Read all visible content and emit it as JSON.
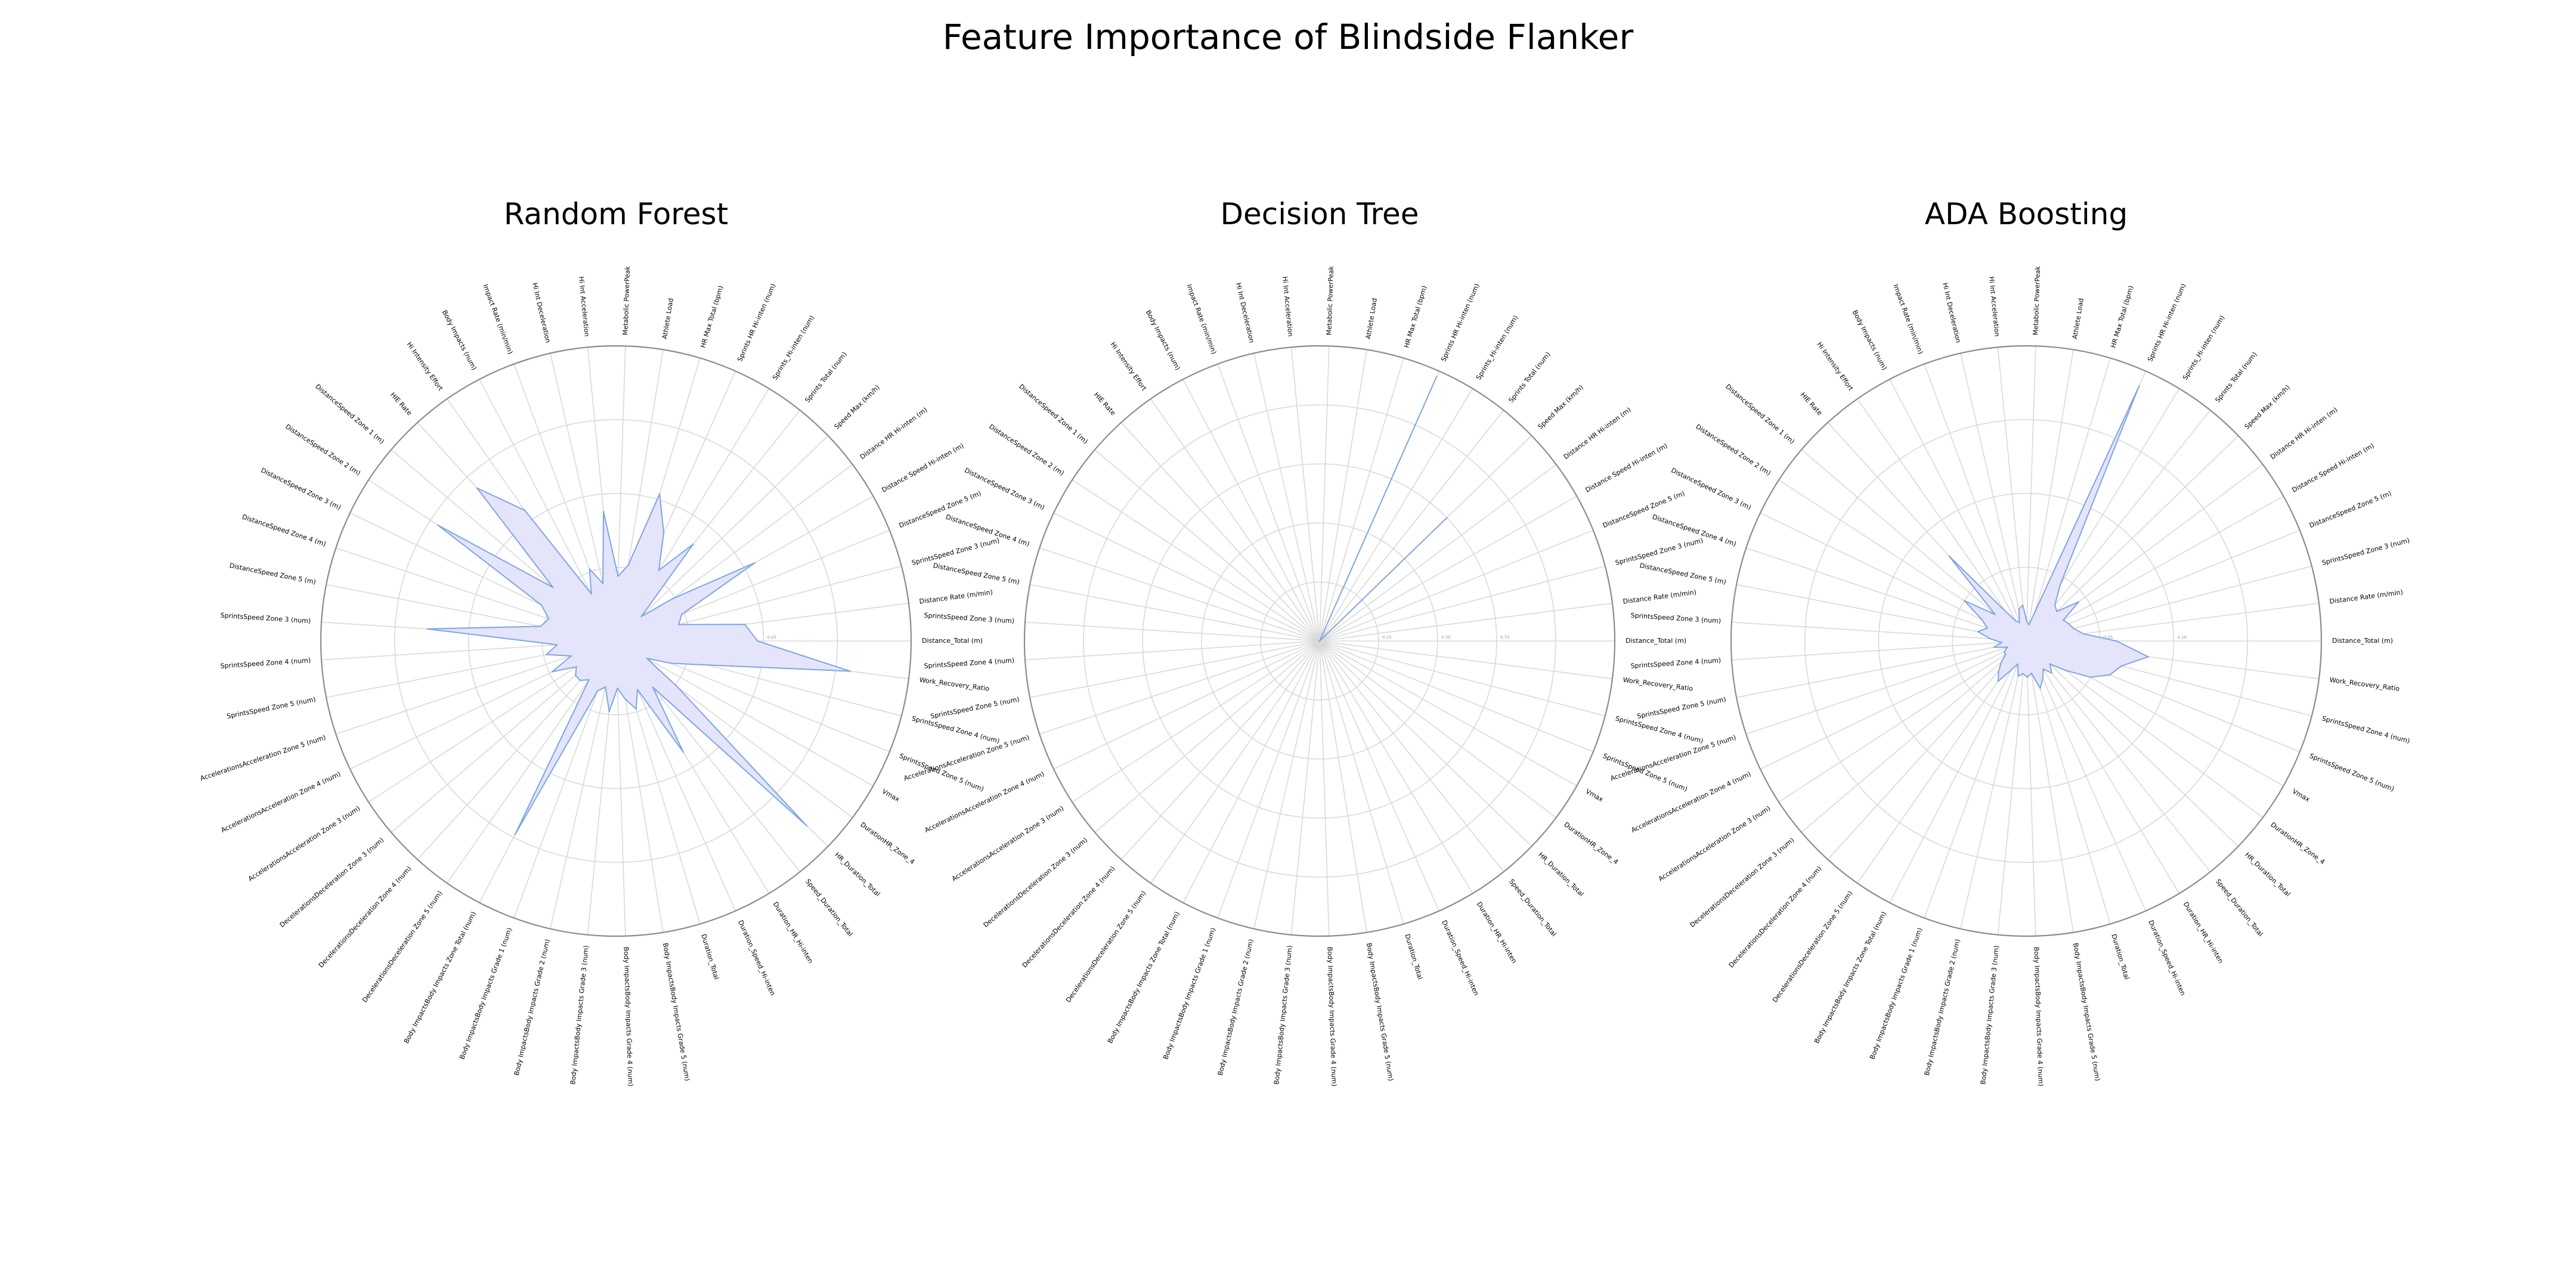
{
  "figure_title": "Feature Importance of Blindside Flanker",
  "colors": {
    "fill": "#e4e4fb",
    "line": "#7ea6e0",
    "grid": "#d9d9d9",
    "outer": "#8c8c8c"
  },
  "chart_data": [
    {
      "type": "radar",
      "title": "Random Forest",
      "ticks": [
        "0.02",
        "0.03"
      ],
      "rlim": [
        0,
        0.05
      ],
      "features": [
        "Distance_Total (m)",
        "Distance Rate (m/min)",
        "SprintsSpeed Zone 3 (num)",
        "DistanceSpeed Zone 5 (m)",
        "Distance Speed Hi-inten (m)",
        "Distance HR Hi-inten (m)",
        "Speed Max (km/h)",
        "Sprints Total (num)",
        "Sprints_Hi-inten (num)",
        "Sprints HR Hi-inten (num)",
        "HR Max Total (bpm)",
        "Athlete Load",
        "Metabolic PowerPeak",
        "Hi Int Acceleration",
        "Hi Int Deceleration",
        "Impact Rate (min/min)",
        "Body Impacts (num)",
        "Hi Intensity Effort",
        "HIE Rate",
        "DistanceSpeed Zone 1 (m)",
        "DistanceSpeed Zone 2 (m)",
        "DistanceSpeed Zone 3 (m)",
        "DistanceSpeed Zone 4 (m)",
        "DistanceSpeed Zone 5 (m)",
        "SprintsSpeed Zone 3 (num)",
        "SprintsSpeed Zone 4 (num)",
        "SprintsSpeed Zone 5 (num)",
        "AccelerationsAcceleration Zone 5 (num)",
        "AccelerationsAcceleration Zone 4 (num)",
        "AccelerationsAcceleration Zone 3 (num)",
        "DecelerationsDeceleration Zone 3 (num)",
        "DecelerationsDeceleration Zone 4 (num)",
        "DecelerationsDeceleration Zone 5 (num)",
        "Body ImpactsBody Impacts Zone Total (num)",
        "Body ImpactsBody Impacts Grade 1 (num)",
        "Body ImpactsBody Impacts Grade 2 (num)",
        "Body ImpactsBody Impacts Grade 3 (num)",
        "Body ImpactsBody Impacts Grade 4 (num)",
        "Body ImpactsBody Impacts Grade 5 (num)",
        "Duration_Total",
        "Duration_Speed_Hi-inten",
        "Duration_HR_Hi-inten",
        "Speed_Duration_Total",
        "HR_Duration_Total",
        "DurationHR_Zone_4",
        "Vmax",
        "SprintsSpeed Zone 5 (num)",
        "SprintsSpeed Zone 4 (num)",
        "Work_Recovery_Ratio"
      ],
      "values": [
        0.024,
        0.022,
        0.011,
        0.012,
        0.027,
        0.012,
        0.006,
        0.021,
        0.014,
        0.02,
        0.026,
        0.013,
        0.011,
        0.022,
        0.01,
        0.013,
        0.009,
        0.027,
        0.035,
        0.014,
        0.036,
        0.014,
        0.012,
        0.013,
        0.032,
        0.01,
        0.012,
        0.008,
        0.012,
        0.008,
        0.009,
        0.009,
        0.008,
        0.037,
        0.009,
        0.008,
        0.012,
        0.008,
        0.01,
        0.012,
        0.009,
        0.022,
        0.01,
        0.045,
        0.013,
        0.006,
        0.01,
        0.016,
        0.04
      ]
    },
    {
      "type": "radar",
      "title": "Decision Tree",
      "ticks": [
        "0.25",
        "0.50",
        "0.75"
      ],
      "rlim": [
        0,
        1.0
      ],
      "features": [
        "Distance_Total (m)",
        "Distance Rate (m/min)",
        "SprintsSpeed Zone 3 (num)",
        "DistanceSpeed Zone 5 (m)",
        "Distance Speed Hi-inten (m)",
        "Distance HR Hi-inten (m)",
        "Speed Max (km/h)",
        "Sprints Total (num)",
        "Sprints_Hi-inten (num)",
        "Sprints HR Hi-inten (num)",
        "HR Max Total (bpm)",
        "Athlete Load",
        "Metabolic PowerPeak",
        "Hi Int Acceleration",
        "Hi Int Deceleration",
        "Impact Rate (min/min)",
        "Body Impacts (num)",
        "Hi Intensity Effort",
        "HIE Rate",
        "DistanceSpeed Zone 1 (m)",
        "DistanceSpeed Zone 2 (m)",
        "DistanceSpeed Zone 3 (m)",
        "DistanceSpeed Zone 4 (m)",
        "DistanceSpeed Zone 5 (m)",
        "SprintsSpeed Zone 3 (num)",
        "SprintsSpeed Zone 4 (num)",
        "SprintsSpeed Zone 5 (num)",
        "AccelerationsAcceleration Zone 5 (num)",
        "AccelerationsAcceleration Zone 4 (num)",
        "AccelerationsAcceleration Zone 3 (num)",
        "DecelerationsDeceleration Zone 3 (num)",
        "DecelerationsDeceleration Zone 4 (num)",
        "DecelerationsDeceleration Zone 5 (num)",
        "Body ImpactsBody Impacts Zone Total (num)",
        "Body ImpactsBody Impacts Grade 1 (num)",
        "Body ImpactsBody Impacts Grade 2 (num)",
        "Body ImpactsBody Impacts Grade 3 (num)",
        "Body ImpactsBody Impacts Grade 4 (num)",
        "Body ImpactsBody Impacts Grade 5 (num)",
        "Duration_Total",
        "Duration_Speed_Hi-inten",
        "Duration_HR_Hi-inten",
        "Speed_Duration_Total",
        "HR_Duration_Total",
        "DurationHR_Zone_4",
        "Vmax",
        "SprintsSpeed Zone 5 (num)",
        "SprintsSpeed Zone 4 (num)",
        "Work_Recovery_Ratio"
      ],
      "values": [
        0,
        0,
        0,
        0,
        0,
        0,
        0.6,
        0,
        0,
        0.98,
        0,
        0,
        0,
        0,
        0,
        0,
        0,
        0,
        0,
        0,
        0,
        0,
        0,
        0,
        0,
        0,
        0,
        0,
        0,
        0,
        0,
        0,
        0,
        0,
        0,
        0,
        0,
        0,
        0,
        0,
        0,
        0,
        0,
        0,
        0,
        0,
        0,
        0,
        0
      ]
    },
    {
      "type": "radar",
      "title": "ADA Boosting",
      "ticks": [
        "0.05",
        "0.10"
      ],
      "rlim": [
        0,
        0.18
      ],
      "features": [
        "Distance_Total (m)",
        "Distance Rate (m/min)",
        "SprintsSpeed Zone 3 (num)",
        "DistanceSpeed Zone 5 (m)",
        "Distance Speed Hi-inten (m)",
        "Distance HR Hi-inten (m)",
        "Speed Max (km/h)",
        "Sprints Total (num)",
        "Sprints_Hi-inten (num)",
        "Sprints HR Hi-inten (num)",
        "HR Max Total (bpm)",
        "Athlete Load",
        "Metabolic PowerPeak",
        "Hi Int Acceleration",
        "Hi Int Deceleration",
        "Impact Rate (min/min)",
        "Body Impacts (num)",
        "Hi Intensity Effort",
        "HIE Rate",
        "DistanceSpeed Zone 1 (m)",
        "DistanceSpeed Zone 2 (m)",
        "DistanceSpeed Zone 3 (m)",
        "DistanceSpeed Zone 4 (m)",
        "DistanceSpeed Zone 5 (m)",
        "SprintsSpeed Zone 3 (num)",
        "SprintsSpeed Zone 4 (num)",
        "SprintsSpeed Zone 5 (num)",
        "AccelerationsAcceleration Zone 5 (num)",
        "AccelerationsAcceleration Zone 4 (num)",
        "AccelerationsAcceleration Zone 3 (num)",
        "DecelerationsDeceleration Zone 3 (num)",
        "DecelerationsDeceleration Zone 4 (num)",
        "DecelerationsDeceleration Zone 5 (num)",
        "Body ImpactsBody Impacts Zone Total (num)",
        "Body ImpactsBody Impacts Grade 1 (num)",
        "Body ImpactsBody Impacts Grade 2 (num)",
        "Body ImpactsBody Impacts Grade 3 (num)",
        "Body ImpactsBody Impacts Grade 4 (num)",
        "Body ImpactsBody Impacts Grade 5 (num)",
        "Duration_Total",
        "Duration_Speed_Hi-inten",
        "Duration_HR_Hi-inten",
        "Speed_Duration_Total",
        "HR_Duration_Total",
        "DurationHR_Zone_4",
        "Vmax",
        "SprintsSpeed Zone 5 (num)",
        "SprintsSpeed Zone 4 (num)",
        "Work_Recovery_Ratio"
      ],
      "values": [
        0.055,
        0.035,
        0.03,
        0.028,
        0.026,
        0.04,
        0.026,
        0.028,
        0.04,
        0.17,
        0.018,
        0.01,
        0.012,
        0.022,
        0.02,
        0.012,
        0.014,
        0.022,
        0.07,
        0.025,
        0.045,
        0.03,
        0.025,
        0.03,
        0.022,
        0.015,
        0.02,
        0.012,
        0.015,
        0.015,
        0.02,
        0.025,
        0.03,
        0.02,
        0.015,
        0.022,
        0.02,
        0.022,
        0.02,
        0.03,
        0.025,
        0.02,
        0.025,
        0.02,
        0.03,
        0.045,
        0.055,
        0.06,
        0.075
      ]
    }
  ]
}
